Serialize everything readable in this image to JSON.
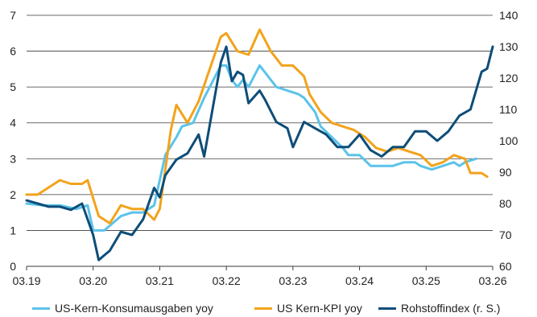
{
  "chart_data": {
    "type": "line",
    "x_axis": {
      "ticks": [
        "03.19",
        "03.20",
        "03.21",
        "03.22",
        "03.23",
        "03.24",
        "03.25",
        "03.26"
      ],
      "range": [
        "2019-03",
        "2026-03"
      ]
    },
    "y_left": {
      "range": [
        0,
        7
      ],
      "ticks": [
        0,
        1,
        2,
        3,
        4,
        5,
        6,
        7
      ]
    },
    "y_right": {
      "range": [
        60,
        140
      ],
      "ticks": [
        60,
        70,
        80,
        90,
        100,
        110,
        120,
        130,
        140
      ]
    },
    "grid": "horizontal",
    "legend_position": "bottom",
    "series": [
      {
        "name": "US-Kern-Konsumausgaben yoy",
        "axis": "left",
        "color": "#5bc3ea",
        "points": [
          [
            "2019-03",
            1.75
          ],
          [
            "2019-06",
            1.7
          ],
          [
            "2019-09",
            1.7
          ],
          [
            "2019-12",
            1.6
          ],
          [
            "2020-02",
            1.7
          ],
          [
            "2020-03",
            1.0
          ],
          [
            "2020-05",
            1.0
          ],
          [
            "2020-08",
            1.4
          ],
          [
            "2020-10",
            1.5
          ],
          [
            "2020-12",
            1.5
          ],
          [
            "2021-02",
            1.7
          ],
          [
            "2021-04",
            3.1
          ],
          [
            "2021-06",
            3.6
          ],
          [
            "2021-07",
            3.9
          ],
          [
            "2021-09",
            4.0
          ],
          [
            "2021-11",
            4.7
          ],
          [
            "2022-01",
            5.3
          ],
          [
            "2022-02",
            5.6
          ],
          [
            "2022-03",
            5.6
          ],
          [
            "2022-04",
            5.2
          ],
          [
            "2022-05",
            5.0
          ],
          [
            "2022-06",
            5.2
          ],
          [
            "2022-07",
            5.0
          ],
          [
            "2022-09",
            5.6
          ],
          [
            "2022-10",
            5.4
          ],
          [
            "2022-12",
            5.0
          ],
          [
            "2023-02",
            4.9
          ],
          [
            "2023-04",
            4.8
          ],
          [
            "2023-05",
            4.7
          ],
          [
            "2023-07",
            4.3
          ],
          [
            "2023-08",
            3.9
          ],
          [
            "2023-10",
            3.6
          ],
          [
            "2023-12",
            3.3
          ],
          [
            "2024-01",
            3.1
          ],
          [
            "2024-03",
            3.1
          ],
          [
            "2024-05",
            2.8
          ],
          [
            "2024-07",
            2.8
          ],
          [
            "2024-09",
            2.8
          ],
          [
            "2024-11",
            2.9
          ],
          [
            "2025-01",
            2.9
          ],
          [
            "2025-02",
            2.8
          ],
          [
            "2025-04",
            2.7
          ],
          [
            "2025-06",
            2.8
          ],
          [
            "2025-08",
            2.9
          ],
          [
            "2025-09",
            2.8
          ],
          [
            "2025-10",
            2.9
          ],
          [
            "2025-12",
            3.0
          ]
        ]
      },
      {
        "name": "US Kern-KPI yoy",
        "axis": "left",
        "color": "#f2a31b",
        "points": [
          [
            "2019-03",
            2.0
          ],
          [
            "2019-05",
            2.0
          ],
          [
            "2019-07",
            2.2
          ],
          [
            "2019-09",
            2.4
          ],
          [
            "2019-11",
            2.3
          ],
          [
            "2020-01",
            2.3
          ],
          [
            "2020-02",
            2.4
          ],
          [
            "2020-04",
            1.4
          ],
          [
            "2020-06",
            1.2
          ],
          [
            "2020-08",
            1.7
          ],
          [
            "2020-10",
            1.6
          ],
          [
            "2020-12",
            1.6
          ],
          [
            "2021-02",
            1.3
          ],
          [
            "2021-03",
            1.6
          ],
          [
            "2021-05",
            3.8
          ],
          [
            "2021-06",
            4.5
          ],
          [
            "2021-08",
            4.0
          ],
          [
            "2021-10",
            4.6
          ],
          [
            "2021-12",
            5.5
          ],
          [
            "2022-02",
            6.4
          ],
          [
            "2022-03",
            6.5
          ],
          [
            "2022-05",
            6.0
          ],
          [
            "2022-07",
            5.9
          ],
          [
            "2022-09",
            6.6
          ],
          [
            "2022-11",
            6.0
          ],
          [
            "2023-01",
            5.6
          ],
          [
            "2023-03",
            5.6
          ],
          [
            "2023-05",
            5.3
          ],
          [
            "2023-06",
            4.8
          ],
          [
            "2023-08",
            4.3
          ],
          [
            "2023-10",
            4.0
          ],
          [
            "2023-12",
            3.9
          ],
          [
            "2024-02",
            3.8
          ],
          [
            "2024-04",
            3.6
          ],
          [
            "2024-06",
            3.3
          ],
          [
            "2024-08",
            3.2
          ],
          [
            "2024-10",
            3.3
          ],
          [
            "2024-12",
            3.2
          ],
          [
            "2025-02",
            3.1
          ],
          [
            "2025-04",
            2.8
          ],
          [
            "2025-06",
            2.9
          ],
          [
            "2025-08",
            3.1
          ],
          [
            "2025-10",
            3.0
          ],
          [
            "2025-11",
            2.6
          ],
          [
            "2026-01",
            2.6
          ],
          [
            "2026-02",
            2.5
          ]
        ]
      },
      {
        "name": "Rohstoffindex (r. S.)",
        "axis": "right",
        "color": "#0e4d78",
        "points": [
          [
            "2019-03",
            81
          ],
          [
            "2019-05",
            80
          ],
          [
            "2019-07",
            79
          ],
          [
            "2019-09",
            79
          ],
          [
            "2019-11",
            78
          ],
          [
            "2020-01",
            80
          ],
          [
            "2020-03",
            70
          ],
          [
            "2020-04",
            62
          ],
          [
            "2020-06",
            65
          ],
          [
            "2020-08",
            71
          ],
          [
            "2020-10",
            70
          ],
          [
            "2020-12",
            75
          ],
          [
            "2021-02",
            85
          ],
          [
            "2021-03",
            82
          ],
          [
            "2021-04",
            89
          ],
          [
            "2021-06",
            94
          ],
          [
            "2021-08",
            96
          ],
          [
            "2021-10",
            102
          ],
          [
            "2021-11",
            95
          ],
          [
            "2022-01",
            115
          ],
          [
            "2022-02",
            125
          ],
          [
            "2022-03",
            130
          ],
          [
            "2022-04",
            119
          ],
          [
            "2022-05",
            122
          ],
          [
            "2022-06",
            121
          ],
          [
            "2022-07",
            112
          ],
          [
            "2022-09",
            116
          ],
          [
            "2022-10",
            113
          ],
          [
            "2022-12",
            106
          ],
          [
            "2023-02",
            104
          ],
          [
            "2023-03",
            98
          ],
          [
            "2023-04",
            102
          ],
          [
            "2023-05",
            106
          ],
          [
            "2023-07",
            104
          ],
          [
            "2023-09",
            102
          ],
          [
            "2023-11",
            98
          ],
          [
            "2024-01",
            98
          ],
          [
            "2024-03",
            102
          ],
          [
            "2024-05",
            97
          ],
          [
            "2024-07",
            95
          ],
          [
            "2024-09",
            98
          ],
          [
            "2024-11",
            98
          ],
          [
            "2025-01",
            103
          ],
          [
            "2025-03",
            103
          ],
          [
            "2025-05",
            100
          ],
          [
            "2025-07",
            103
          ],
          [
            "2025-09",
            108
          ],
          [
            "2025-11",
            110
          ],
          [
            "2026-01",
            122
          ],
          [
            "2026-02",
            123
          ],
          [
            "2026-03",
            130
          ]
        ]
      }
    ]
  }
}
